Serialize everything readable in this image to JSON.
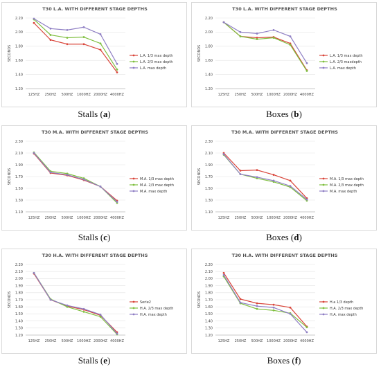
{
  "chart_data": [
    {
      "type": "line",
      "title": "T30 L.A. WITH DIFFERENT STAGE DEPTHS",
      "caption_text": "Stalls",
      "caption_letter": "a",
      "ylabel": "SECONDS",
      "categories": [
        "125HZ",
        "250HZ",
        "500HZ",
        "1000HZ",
        "2000HZ",
        "4000HZ"
      ],
      "ylim": [
        1.2,
        2.2
      ],
      "yticks": [
        "1.20",
        "1.40",
        "1.60",
        "1.80",
        "2.00",
        "2.20"
      ],
      "legend_position": "right",
      "series": [
        {
          "name": "L.A. 1/3 max depth",
          "color": "#d9453a",
          "values": [
            2.13,
            1.89,
            1.83,
            1.83,
            1.75,
            1.43
          ]
        },
        {
          "name": "L.A. 2/3 max depth",
          "color": "#7fbf3f",
          "values": [
            2.18,
            1.96,
            1.92,
            1.93,
            1.84,
            1.47
          ]
        },
        {
          "name": "L.A. max depth",
          "color": "#8f7fc4",
          "values": [
            2.19,
            2.05,
            2.03,
            2.07,
            1.97,
            1.55
          ]
        }
      ]
    },
    {
      "type": "line",
      "title": "T30 L.A. WITH DIFFERENT STAGE DEPTHS",
      "caption_text": "Boxes",
      "caption_letter": "b",
      "ylabel": "SECONDS",
      "categories": [
        "125HZ",
        "250HZ",
        "500HZ",
        "1000HZ",
        "2000HZ",
        "4000HZ"
      ],
      "ylim": [
        1.2,
        2.2
      ],
      "yticks": [
        "1.20",
        "1.40",
        "1.60",
        "1.80",
        "2.00",
        "2.20"
      ],
      "legend_position": "right",
      "series": [
        {
          "name": "L.A. 1/3 max depth",
          "color": "#d9453a",
          "values": [
            2.14,
            1.94,
            1.92,
            1.93,
            1.84,
            1.46
          ]
        },
        {
          "name": "L.A. 2/3 maxdepth",
          "color": "#7fbf3f",
          "values": [
            2.14,
            1.94,
            1.9,
            1.92,
            1.82,
            1.45
          ]
        },
        {
          "name": "L.A. max depth",
          "color": "#8f7fc4",
          "values": [
            2.14,
            2.0,
            1.98,
            2.03,
            1.94,
            1.56
          ]
        }
      ]
    },
    {
      "type": "line",
      "title": "T30 M.A. WITH DIFFERENT STAGE DEPTHS",
      "caption_text": "Stalls",
      "caption_letter": "c",
      "ylabel": "SECONDS",
      "categories": [
        "125HZ",
        "250HZ",
        "500HZ",
        "1000HZ",
        "2000HZ",
        "4000HZ"
      ],
      "ylim": [
        1.1,
        2.3
      ],
      "yticks": [
        "1.10",
        "1.30",
        "1.50",
        "1.70",
        "1.90",
        "2.10",
        "2.30"
      ],
      "legend_position": "right",
      "series": [
        {
          "name": "M.A. 1/3 max depth",
          "color": "#d9453a",
          "values": [
            2.09,
            1.76,
            1.72,
            1.64,
            1.53,
            1.29
          ]
        },
        {
          "name": "M.A. 2/3 max depth",
          "color": "#7fbf3f",
          "values": [
            2.11,
            1.79,
            1.75,
            1.67,
            1.53,
            1.25
          ]
        },
        {
          "name": "M.A. max depth",
          "color": "#8f7fc4",
          "values": [
            2.1,
            1.77,
            1.73,
            1.65,
            1.53,
            1.27
          ]
        }
      ]
    },
    {
      "type": "line",
      "title": "T30 M.A. WITH DIFFERENT STAGE DEPTHS",
      "caption_text": "Boxes",
      "caption_letter": "d",
      "ylabel": "SECONDS",
      "categories": [
        "125HZ",
        "250HZ",
        "500HZ",
        "1000HZ",
        "2000HZ",
        "4000HZ"
      ],
      "ylim": [
        1.1,
        2.3
      ],
      "yticks": [
        "1.10",
        "1.30",
        "1.50",
        "1.70",
        "1.90",
        "2.10",
        "2.30"
      ],
      "legend_position": "right",
      "series": [
        {
          "name": "M.A. 1/3 max depth",
          "color": "#d9453a",
          "values": [
            2.1,
            1.8,
            1.81,
            1.73,
            1.63,
            1.33
          ]
        },
        {
          "name": "M.A. 2/3 max depth",
          "color": "#7fbf3f",
          "values": [
            2.07,
            1.74,
            1.67,
            1.61,
            1.52,
            1.29
          ]
        },
        {
          "name": "M.A. max depth",
          "color": "#8f7fc4",
          "values": [
            2.08,
            1.74,
            1.69,
            1.63,
            1.54,
            1.31
          ]
        }
      ]
    },
    {
      "type": "line",
      "title": "T30 H.A. WITH DIFFERENT STAGE DEPTHS",
      "caption_text": "Stalls",
      "caption_letter": "e",
      "ylabel": "SECONDS",
      "categories": [
        "125HZ",
        "250HZ",
        "500HZ",
        "1000HZ",
        "2000HZ",
        "4000HZ"
      ],
      "ylim": [
        1.2,
        2.2
      ],
      "yticks": [
        "1.20",
        "1.30",
        "1.40",
        "1.50",
        "1.60",
        "1.70",
        "1.80",
        "1.90",
        "2.00",
        "2.10",
        "2.20"
      ],
      "legend_position": "right",
      "series": [
        {
          "name": "Serie2",
          "color": "#d9453a",
          "values": [
            2.07,
            1.7,
            1.61,
            1.56,
            1.48,
            1.24
          ]
        },
        {
          "name": "H.A. 2/3 max depth",
          "color": "#7fbf3f",
          "values": [
            2.08,
            1.71,
            1.6,
            1.53,
            1.46,
            1.21
          ]
        },
        {
          "name": "H.A. max depth",
          "color": "#8f7fc4",
          "values": [
            2.08,
            1.7,
            1.62,
            1.57,
            1.49,
            1.22
          ]
        }
      ]
    },
    {
      "type": "line",
      "title": "T30 H.A. WITH DIFFERENT STAGE DEPTHS",
      "caption_text": "Boxes",
      "caption_letter": "f",
      "ylabel": "SECONDS",
      "categories": [
        "125HZ",
        "250HZ",
        "500HZ",
        "1000HZ",
        "2000HZ",
        "4000HZ"
      ],
      "ylim": [
        1.2,
        2.2
      ],
      "yticks": [
        "1.20",
        "1.30",
        "1.40",
        "1.50",
        "1.60",
        "1.70",
        "1.80",
        "1.90",
        "2.00",
        "2.10",
        "2.20"
      ],
      "legend_position": "right",
      "series": [
        {
          "name": "H.a 1/3 depth",
          "color": "#d9453a",
          "values": [
            2.08,
            1.71,
            1.65,
            1.63,
            1.59,
            1.32
          ]
        },
        {
          "name": "H.A. 2/3 max depth",
          "color": "#7fbf3f",
          "values": [
            2.03,
            1.65,
            1.57,
            1.55,
            1.51,
            1.31
          ]
        },
        {
          "name": "H.A. max depth",
          "color": "#8f7fc4",
          "values": [
            2.05,
            1.66,
            1.61,
            1.59,
            1.5,
            1.24
          ]
        }
      ]
    }
  ]
}
